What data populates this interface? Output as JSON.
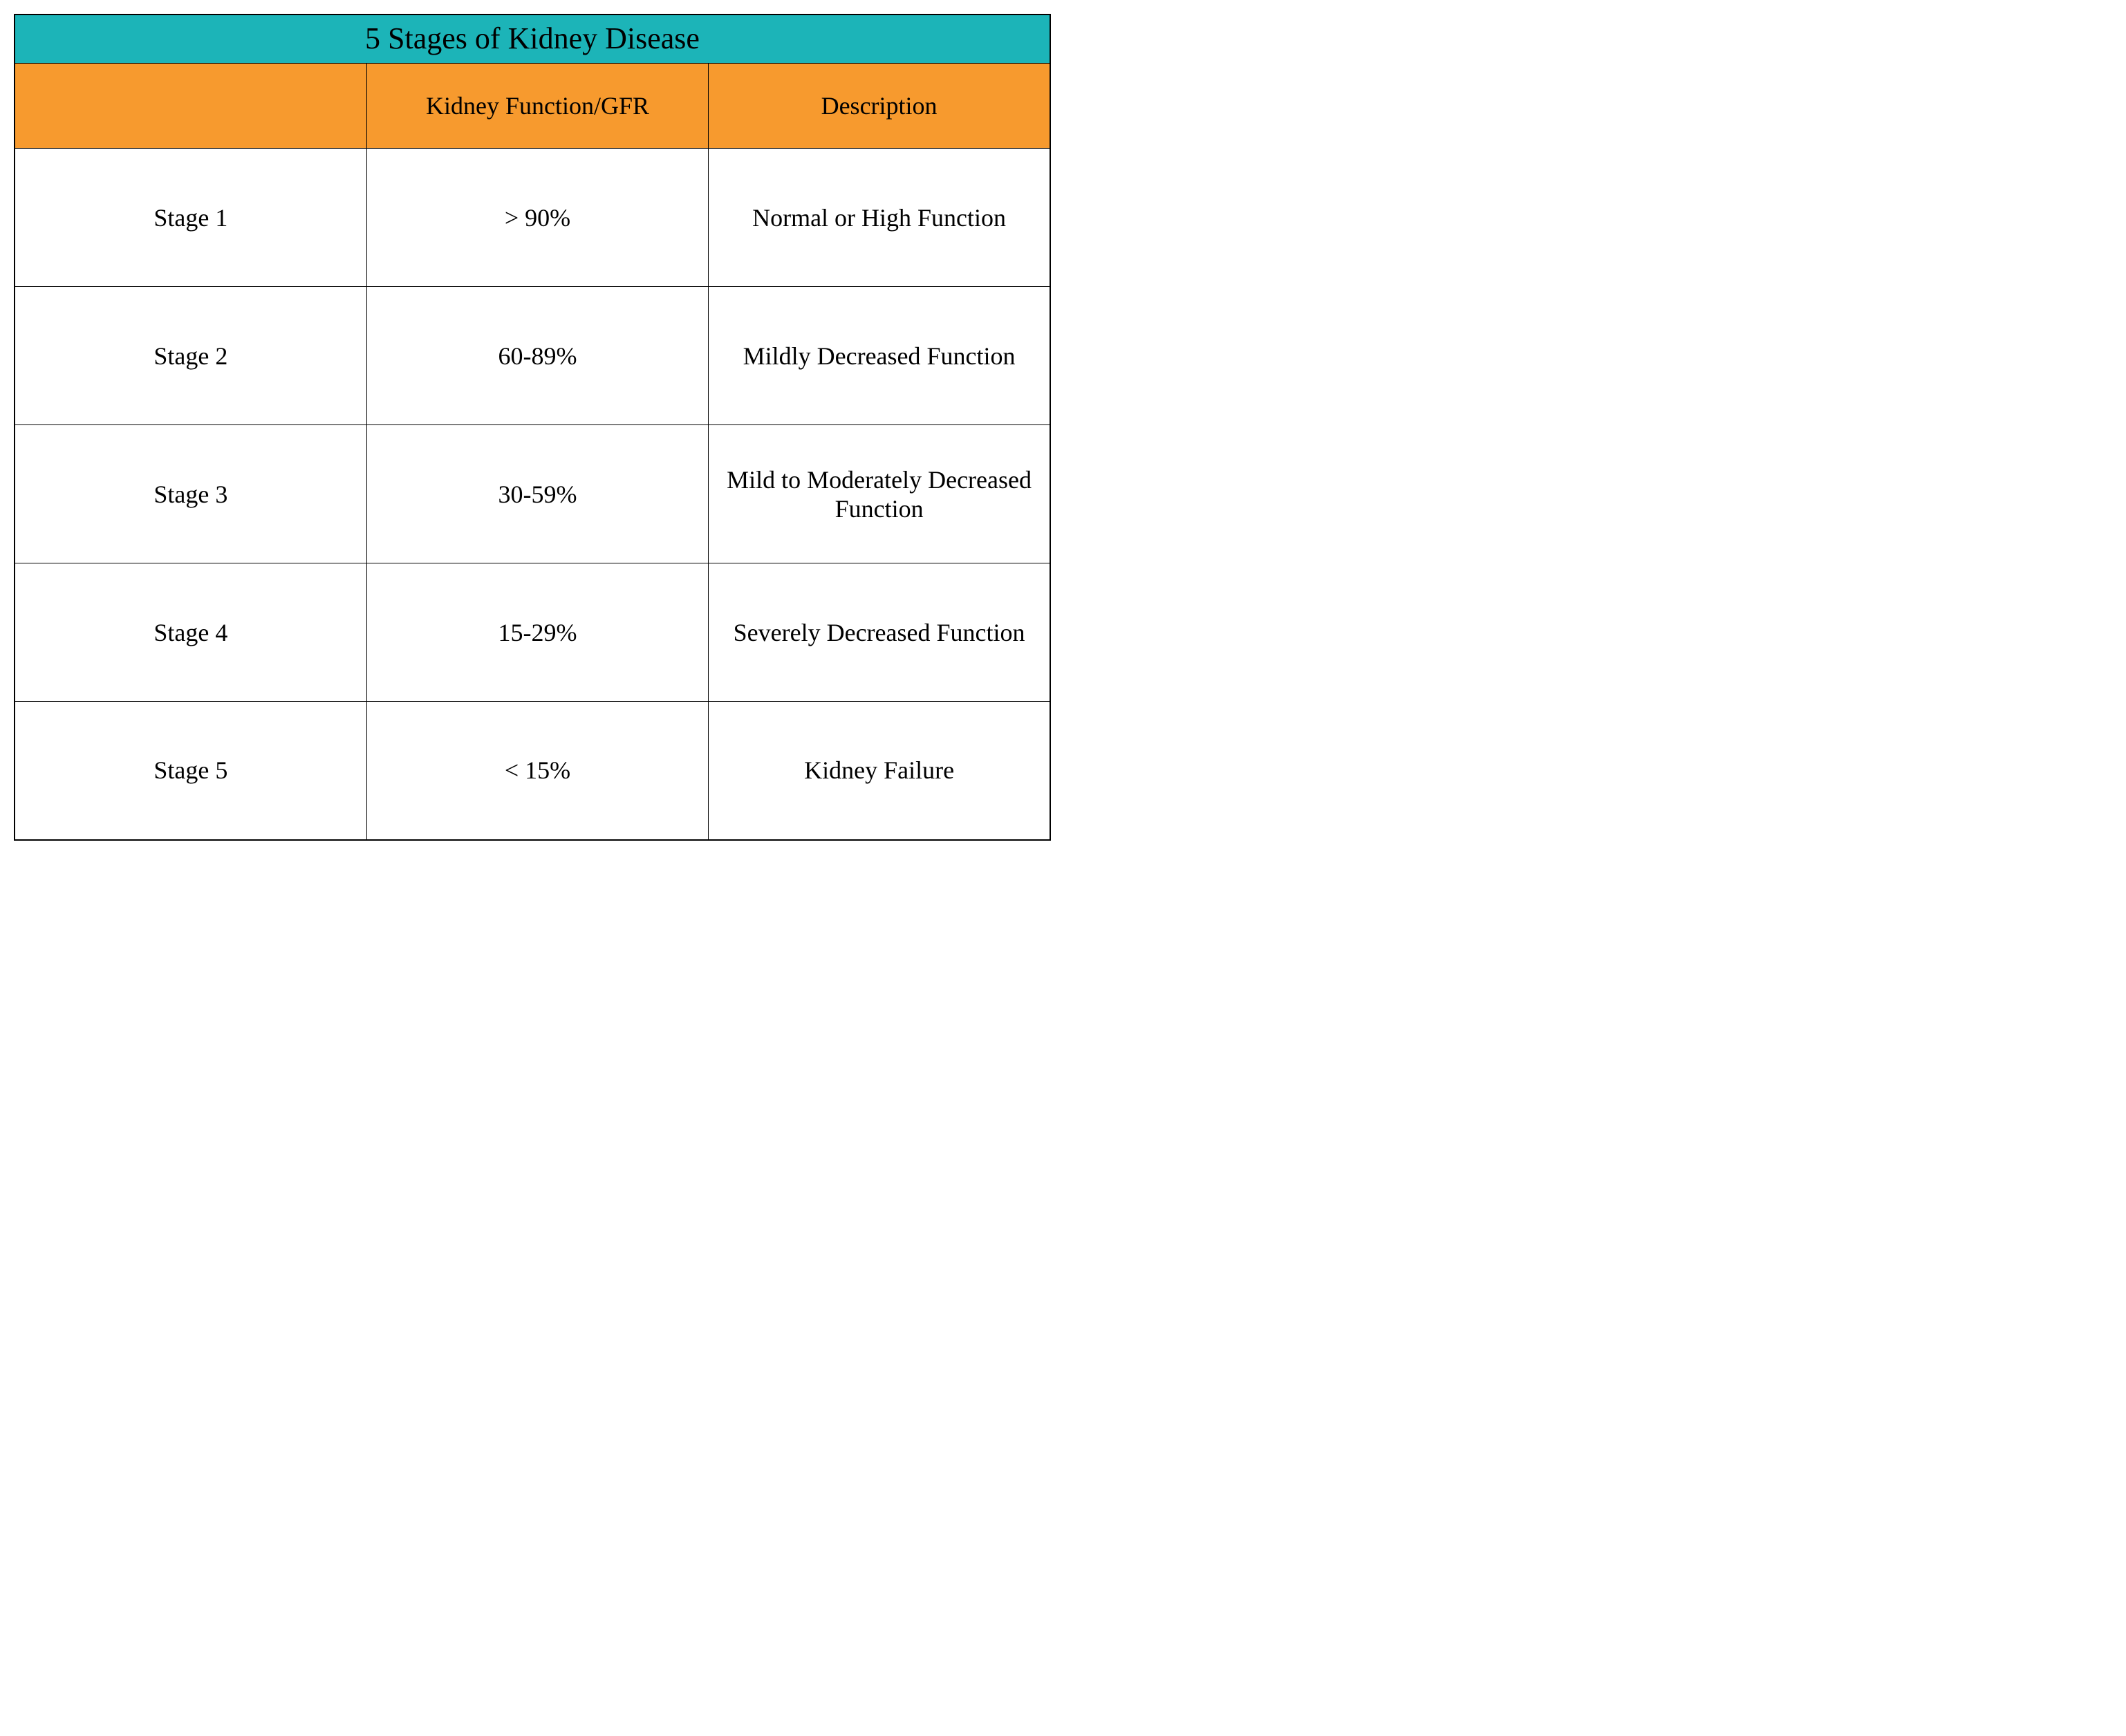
{
  "table": {
    "title": "5 Stages of Kidney Disease",
    "title_bg_color": "#1cb4b8",
    "header_bg_color": "#f79a2e",
    "border_color": "#000000",
    "background_color": "#ffffff",
    "text_color": "#000000",
    "title_fontsize": 44,
    "header_fontsize": 36,
    "cell_fontsize": 36,
    "font_family": "Georgia, serif",
    "columns": [
      "",
      "Kidney Function/GFR",
      "Description"
    ],
    "column_widths": [
      "34%",
      "33%",
      "33%"
    ],
    "rows": [
      {
        "stage": "Stage 1",
        "gfr": "> 90%",
        "description": "Normal or High Function"
      },
      {
        "stage": "Stage 2",
        "gfr": "60-89%",
        "description": "Mildly Decreased Function"
      },
      {
        "stage": "Stage 3",
        "gfr": "30-59%",
        "description": "Mild to Moderately Decreased Function"
      },
      {
        "stage": "Stage 4",
        "gfr": "15-29%",
        "description": "Severely Decreased Function"
      },
      {
        "stage": "Stage 5",
        "gfr": "< 15%",
        "description": "Kidney Failure"
      }
    ]
  }
}
